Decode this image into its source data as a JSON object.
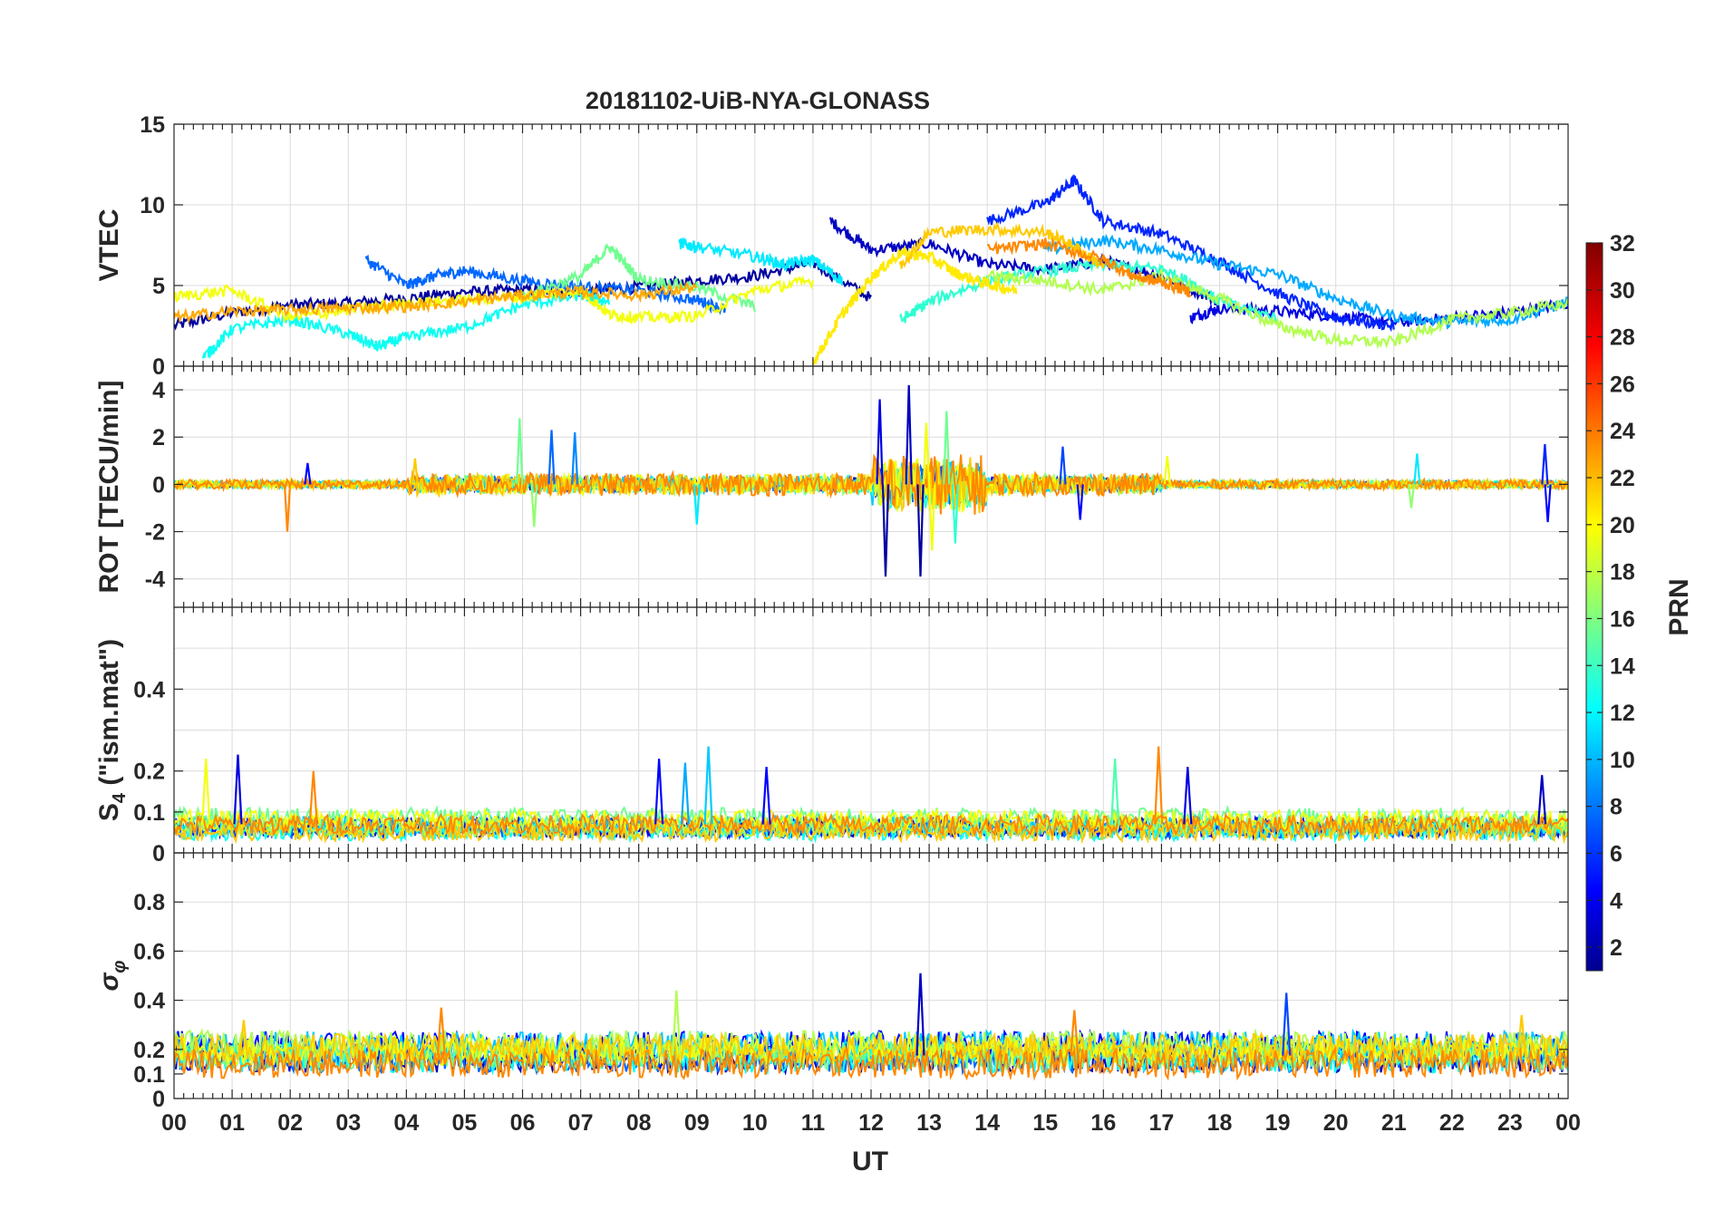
{
  "chart_data": {
    "type": "line",
    "title": "20181102-UiB-NYA-GLONASS",
    "xlabel": "UT",
    "x_range_hours": [
      0,
      24
    ],
    "x_tick_labels": [
      "00",
      "01",
      "02",
      "03",
      "04",
      "05",
      "06",
      "07",
      "08",
      "09",
      "10",
      "11",
      "12",
      "13",
      "14",
      "15",
      "16",
      "17",
      "18",
      "19",
      "20",
      "21",
      "22",
      "23",
      "00"
    ],
    "colorbar": {
      "label": "PRN",
      "range": [
        1,
        32
      ],
      "tick_labels": [
        "2",
        "4",
        "6",
        "8",
        "10",
        "12",
        "14",
        "16",
        "18",
        "20",
        "22",
        "24",
        "26",
        "28",
        "30",
        "32"
      ],
      "colormap": "jet"
    },
    "panels": [
      {
        "name": "vtec",
        "ylabel": "VTEC",
        "ylim": [
          0,
          15
        ],
        "y_tick_labels": [
          "0",
          "5",
          "10",
          "15"
        ],
        "series": [
          {
            "prn": 2,
            "x": [
              0,
              1,
              2,
              3,
              4,
              5,
              6,
              7,
              8,
              9,
              10,
              11,
              12
            ],
            "y": [
              2.5,
              3.3,
              3.8,
              3.9,
              4.2,
              4.6,
              4.7,
              4.6,
              4.9,
              5.3,
              5.6,
              6.4,
              4.2
            ]
          },
          {
            "prn": 3,
            "x": [
              11.3,
              12,
              13,
              14,
              15,
              16,
              17,
              18
            ],
            "y": [
              9.0,
              7.2,
              7.6,
              6.3,
              6.0,
              6.5,
              5.6,
              4.0
            ]
          },
          {
            "prn": 4,
            "x": [
              17.5,
              18,
              19,
              20,
              21,
              22,
              23,
              24
            ],
            "y": [
              3.0,
              3.6,
              3.4,
              3.1,
              2.7,
              3.0,
              3.3,
              3.9
            ]
          },
          {
            "prn": 6,
            "x": [
              14,
              15,
              15.5,
              16,
              17,
              18,
              19,
              20,
              21
            ],
            "y": [
              9.0,
              10.1,
              11.5,
              9.0,
              8.2,
              6.5,
              4.5,
              3.0,
              2.5
            ]
          },
          {
            "prn": 8,
            "x": [
              3.3,
              4,
              4.5,
              5,
              6,
              7,
              8,
              9,
              9.5
            ],
            "y": [
              6.6,
              5.0,
              5.6,
              5.9,
              5.3,
              4.9,
              4.7,
              4.1,
              3.5
            ]
          },
          {
            "prn": 10,
            "x": [
              15,
              16,
              17,
              18,
              19,
              20,
              21,
              22,
              23,
              24
            ],
            "y": [
              7.2,
              7.8,
              7.2,
              6.3,
              5.7,
              4.2,
              3.1,
              2.7,
              2.9,
              4.0
            ]
          },
          {
            "prn": 12,
            "x": [
              8.7,
              9,
              10,
              10.5,
              11,
              11.5
            ],
            "y": [
              7.6,
              7.4,
              6.8,
              6.3,
              6.6,
              5.3
            ]
          },
          {
            "prn": 13,
            "x": [
              0.5,
              1,
              2,
              3,
              3.5,
              4,
              5,
              6,
              7,
              7.5
            ],
            "y": [
              0.5,
              2.3,
              2.9,
              2.0,
              1.2,
              1.8,
              2.4,
              3.8,
              4.4,
              4.0
            ]
          },
          {
            "prn": 14,
            "x": [
              12.5,
              13,
              14,
              15,
              16,
              17,
              17.5,
              18,
              19
            ],
            "y": [
              2.8,
              4.0,
              5.3,
              5.9,
              6.3,
              6.0,
              5.2,
              4.0,
              3.0
            ]
          },
          {
            "prn": 16,
            "x": [
              6,
              7,
              7.5,
              8,
              9,
              10
            ],
            "y": [
              4.3,
              5.6,
              7.4,
              5.4,
              4.9,
              3.7
            ]
          },
          {
            "prn": 18,
            "x": [
              14,
              15,
              16,
              17,
              18,
              19,
              20,
              21,
              22,
              23,
              24
            ],
            "y": [
              5.6,
              5.3,
              4.7,
              5.6,
              4.2,
              2.5,
              1.6,
              1.5,
              2.9,
              3.3,
              3.9
            ]
          },
          {
            "prn": 20,
            "x": [
              0,
              1,
              2,
              3,
              4,
              5,
              6,
              7,
              7.5,
              8,
              9,
              10,
              11
            ],
            "y": [
              4.3,
              4.7,
              3.0,
              3.5,
              3.9,
              4.1,
              4.3,
              4.7,
              3.2,
              3.0,
              3.1,
              4.7,
              5.3
            ]
          },
          {
            "prn": 21,
            "x": [
              11,
              11.5,
              12,
              12.5,
              13,
              13.5,
              14,
              14.5
            ],
            "y": [
              0.2,
              3.2,
              5.5,
              7.0,
              6.8,
              5.7,
              5.1,
              4.7
            ]
          },
          {
            "prn": 22,
            "x": [
              12.5,
              13,
              14,
              15,
              15.5,
              16
            ],
            "y": [
              6.2,
              8.3,
              8.5,
              8.3,
              7.4,
              6.2
            ]
          },
          {
            "prn": 23,
            "x": [
              0,
              1,
              2,
              3,
              4,
              5,
              6,
              7,
              8,
              9
            ],
            "y": [
              3.0,
              3.4,
              3.5,
              3.6,
              3.7,
              4.0,
              4.4,
              4.6,
              4.4,
              4.9
            ]
          },
          {
            "prn": 24,
            "x": [
              14,
              15,
              16,
              16.5,
              17,
              17.5
            ],
            "y": [
              7.2,
              7.6,
              6.6,
              5.6,
              5.2,
              4.6
            ]
          }
        ]
      },
      {
        "name": "rot",
        "ylabel": "ROT [TECU/min]",
        "ylim": [
          -5.2,
          5.0
        ],
        "y_tick_labels": [
          "-4",
          "-2",
          "0",
          "2",
          "4"
        ],
        "spikes": [
          {
            "prn": 24,
            "t": 1.95,
            "v": -2.0
          },
          {
            "prn": 5,
            "t": 2.3,
            "v": 0.9
          },
          {
            "prn": 22,
            "t": 4.15,
            "v": 1.1
          },
          {
            "prn": 16,
            "t": 5.95,
            "v": 2.8
          },
          {
            "prn": 17,
            "t": 6.2,
            "v": -1.8
          },
          {
            "prn": 8,
            "t": 6.5,
            "v": 2.3
          },
          {
            "prn": 9,
            "t": 6.9,
            "v": 2.2
          },
          {
            "prn": 12,
            "t": 9.0,
            "v": -1.7
          },
          {
            "prn": 4,
            "t": 12.15,
            "v": 3.6
          },
          {
            "prn": 2,
            "t": 12.25,
            "v": -3.9
          },
          {
            "prn": 3,
            "t": 12.65,
            "v": 4.2
          },
          {
            "prn": 2,
            "t": 12.85,
            "v": -3.9
          },
          {
            "prn": 20,
            "t": 12.95,
            "v": 2.6
          },
          {
            "prn": 20,
            "t": 13.05,
            "v": -2.8
          },
          {
            "prn": 16,
            "t": 13.3,
            "v": 3.1
          },
          {
            "prn": 14,
            "t": 13.45,
            "v": -2.5
          },
          {
            "prn": 7,
            "t": 15.3,
            "v": 1.6
          },
          {
            "prn": 5,
            "t": 15.6,
            "v": -1.5
          },
          {
            "prn": 20,
            "t": 17.1,
            "v": 1.2
          },
          {
            "prn": 17,
            "t": 21.3,
            "v": -1.0
          },
          {
            "prn": 12,
            "t": 21.4,
            "v": 1.3
          },
          {
            "prn": 6,
            "t": 23.6,
            "v": 1.7
          },
          {
            "prn": 5,
            "t": 23.65,
            "v": -1.6
          }
        ]
      },
      {
        "name": "s4",
        "ylabel": "S",
        "ylabel_sub": "4",
        "ylabel_tail": " (\"ism.mat\")",
        "ylim": [
          0,
          0.6
        ],
        "y_tick_labels": [
          "0",
          "0.1",
          "0.2",
          "0.4"
        ],
        "baseline_range": [
          0.04,
          0.1
        ],
        "spikes": [
          {
            "prn": 20,
            "t": 0.55,
            "v": 0.23
          },
          {
            "prn": 4,
            "t": 1.1,
            "v": 0.24
          },
          {
            "prn": 24,
            "t": 2.4,
            "v": 0.2
          },
          {
            "prn": 5,
            "t": 8.35,
            "v": 0.23
          },
          {
            "prn": 10,
            "t": 8.8,
            "v": 0.22
          },
          {
            "prn": 11,
            "t": 9.2,
            "v": 0.26
          },
          {
            "prn": 5,
            "t": 10.2,
            "v": 0.21
          },
          {
            "prn": 15,
            "t": 16.2,
            "v": 0.23
          },
          {
            "prn": 24,
            "t": 16.95,
            "v": 0.26
          },
          {
            "prn": 4,
            "t": 17.45,
            "v": 0.21
          },
          {
            "prn": 3,
            "t": 23.55,
            "v": 0.19
          }
        ]
      },
      {
        "name": "sigma_phi",
        "ylabel": "σ",
        "ylabel_sub": "φ",
        "ylim": [
          0,
          1
        ],
        "y_tick_labels": [
          "0",
          "0.1",
          "0.2",
          "0.4",
          "0.6",
          "0.8"
        ],
        "baseline_range": [
          0.1,
          0.25
        ],
        "spikes": [
          {
            "prn": 22,
            "t": 1.2,
            "v": 0.32
          },
          {
            "prn": 24,
            "t": 4.6,
            "v": 0.37
          },
          {
            "prn": 18,
            "t": 8.65,
            "v": 0.44
          },
          {
            "prn": 3,
            "t": 12.85,
            "v": 0.51
          },
          {
            "prn": 24,
            "t": 15.5,
            "v": 0.36
          },
          {
            "prn": 7,
            "t": 19.15,
            "v": 0.43
          },
          {
            "prn": 22,
            "t": 23.2,
            "v": 0.34
          }
        ]
      }
    ]
  }
}
